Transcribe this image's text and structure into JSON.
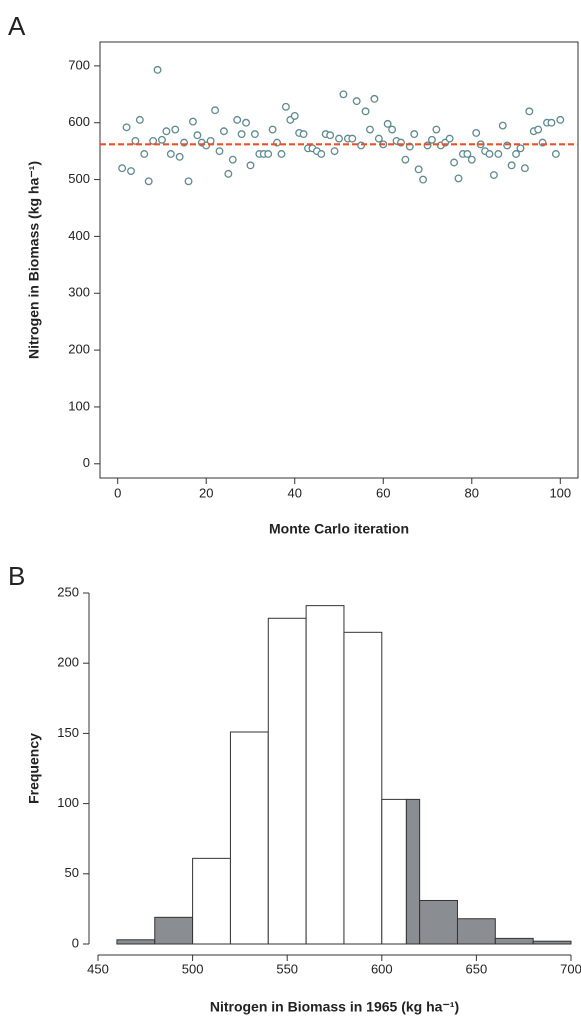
{
  "chart_data": [
    {
      "type": "scatter",
      "panel_label": "A",
      "x_label": "Monte Carlo iteration",
      "y_label": "Nitrogen in Biomass (kg ha⁻¹)",
      "x": [
        1,
        2,
        3,
        4,
        5,
        6,
        7,
        8,
        9,
        10,
        11,
        12,
        13,
        14,
        15,
        16,
        17,
        18,
        19,
        20,
        21,
        22,
        23,
        24,
        25,
        26,
        27,
        28,
        29,
        30,
        31,
        32,
        33,
        34,
        35,
        36,
        37,
        38,
        39,
        40,
        41,
        42,
        43,
        44,
        45,
        46,
        47,
        48,
        49,
        50,
        51,
        52,
        53,
        54,
        55,
        56,
        57,
        58,
        59,
        60,
        61,
        62,
        63,
        64,
        65,
        66,
        67,
        68,
        69,
        70,
        71,
        72,
        73,
        74,
        75,
        76,
        77,
        78,
        79,
        80,
        81,
        82,
        83,
        84,
        85,
        86,
        87,
        88,
        89,
        90,
        91,
        92,
        93,
        94,
        95,
        96,
        97,
        98,
        99,
        100
      ],
      "values": [
        520,
        592,
        515,
        568,
        605,
        545,
        497,
        568,
        693,
        570,
        585,
        545,
        588,
        540,
        565,
        497,
        602,
        578,
        565,
        560,
        568,
        622,
        550,
        585,
        510,
        535,
        605,
        580,
        600,
        525,
        580,
        545,
        545,
        545,
        588,
        565,
        545,
        628,
        605,
        612,
        582,
        580,
        555,
        555,
        550,
        545,
        580,
        578,
        550,
        572,
        650,
        572,
        572,
        638,
        560,
        620,
        588,
        642,
        572,
        562,
        598,
        588,
        568,
        565,
        535,
        558,
        580,
        518,
        500,
        560,
        570,
        588,
        560,
        565,
        572,
        530,
        502,
        545,
        545,
        535,
        582,
        562,
        550,
        545,
        508,
        545,
        595,
        560,
        525,
        545,
        555,
        520,
        620,
        585,
        588,
        565,
        600,
        600,
        545,
        605
      ],
      "color": "#5f8a8f",
      "hline": {
        "value": 562,
        "color": "#e8512a"
      },
      "xlim": [
        -4,
        104
      ],
      "ylim": [
        -25,
        742
      ],
      "xticks": [
        0,
        20,
        40,
        60,
        80,
        100
      ],
      "yticks": [
        0,
        100,
        200,
        300,
        400,
        500,
        600,
        700
      ]
    },
    {
      "type": "histogram",
      "panel_label": "B",
      "x_label": "Nitrogen in Biomass in 1965 (kg ha⁻¹)",
      "y_label": "Frequency",
      "bins": [
        460,
        480,
        500,
        520,
        540,
        560,
        580,
        600,
        613,
        620,
        640,
        660,
        680,
        700
      ],
      "counts": [
        3,
        19,
        61,
        151,
        232,
        241,
        222,
        103,
        103,
        31,
        18,
        4,
        2
      ],
      "colors": [
        "#8a8d91",
        "#8a8d91",
        "#ffffff",
        "#ffffff",
        "#ffffff",
        "#ffffff",
        "#ffffff",
        "#ffffff",
        "#8a8d91",
        "#8a8d91",
        "#8a8d91",
        "#8a8d91",
        "#8a8d91"
      ],
      "xlim": [
        450,
        700
      ],
      "ylim": [
        0,
        250
      ],
      "xticks": [
        450,
        500,
        550,
        600,
        650,
        700
      ],
      "yticks": [
        0,
        50,
        100,
        150,
        200,
        250
      ]
    }
  ]
}
